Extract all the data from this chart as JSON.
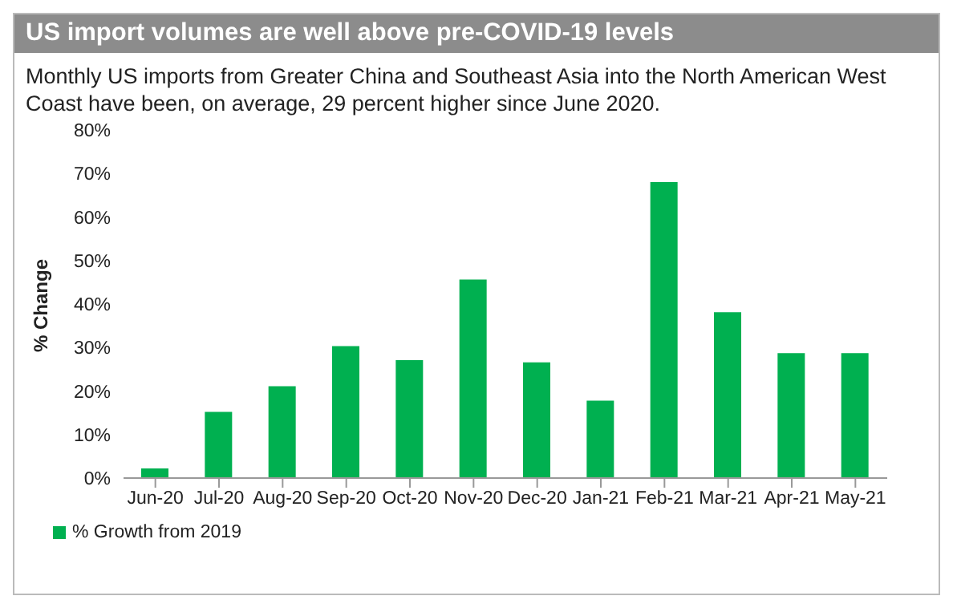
{
  "chart_data": {
    "type": "bar",
    "title": "US import volumes are well above pre-COVID-19 levels",
    "subtitle": "Monthly US imports from Greater China and Southeast Asia into the North American West Coast have been, on average, 29 percent higher since June 2020.",
    "ylabel": "% Change",
    "categories": [
      "Jun-20",
      "Jul-20",
      "Aug-20",
      "Sep-20",
      "Oct-20",
      "Nov-20",
      "Dec-20",
      "Jan-21",
      "Feb-21",
      "Mar-21",
      "Apr-21",
      "May-21"
    ],
    "series": [
      {
        "name": "% Growth from 2019",
        "color": "#00b050",
        "values": [
          2.2,
          15.2,
          21.1,
          30.3,
          27.1,
          45.6,
          26.6,
          17.8,
          68.0,
          38.1,
          28.7,
          28.7
        ]
      }
    ],
    "ylim": [
      0,
      80
    ],
    "yticks": [
      {
        "value": 0,
        "label": "0%"
      },
      {
        "value": 10,
        "label": "10%"
      },
      {
        "value": 20,
        "label": "20%"
      },
      {
        "value": 30,
        "label": "30%"
      },
      {
        "value": 40,
        "label": "40%"
      },
      {
        "value": 50,
        "label": "50%"
      },
      {
        "value": 60,
        "label": "60%"
      },
      {
        "value": 70,
        "label": "70%"
      },
      {
        "value": 80,
        "label": "80%"
      }
    ],
    "grid": false,
    "legend": "bottom left"
  }
}
